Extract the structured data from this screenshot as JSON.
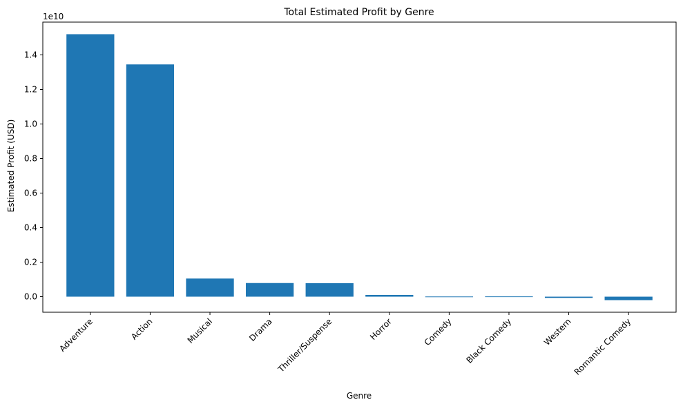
{
  "chart_data": {
    "type": "bar",
    "title": "Total Estimated Profit by Genre",
    "xlabel": "Genre",
    "ylabel": "Estimated Profit (USD)",
    "y_offset_text": "1e10",
    "y_scale": 10000000000,
    "categories": [
      "Adventure",
      "Action",
      "Musical",
      "Drama",
      "Thriller/Suspense",
      "Horror",
      "Comedy",
      "Black Comedy",
      "Western",
      "Romantic Comedy"
    ],
    "values": [
      15200000000,
      13450000000,
      1050000000,
      790000000,
      780000000,
      100000000,
      10000000,
      15000000,
      -70000000,
      -200000000
    ],
    "ylim": [
      -900000000,
      15900000000
    ],
    "yticks": [
      0,
      2000000000,
      4000000000,
      6000000000,
      8000000000,
      10000000000,
      12000000000,
      14000000000
    ],
    "ytick_labels": [
      "0.0",
      "0.2",
      "0.4",
      "0.6",
      "0.8",
      "1.0",
      "1.2",
      "1.4"
    ],
    "bar_color": "#1f77b4",
    "grid": false,
    "legend": "none"
  }
}
